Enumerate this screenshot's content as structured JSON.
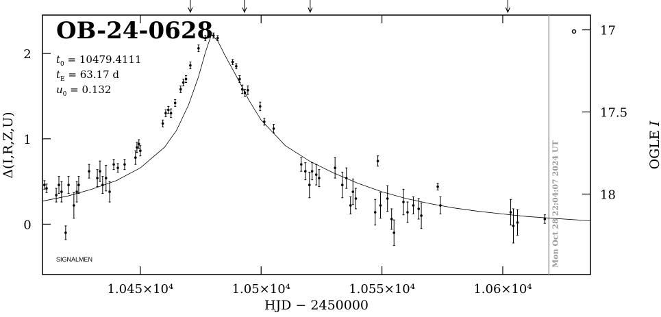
{
  "chart_data": {
    "type": "scatter",
    "title": "OB-24-0628",
    "params": [
      {
        "symbol": "t",
        "sub": "0",
        "text": " = 10479.4111"
      },
      {
        "symbol": "t",
        "sub": "E",
        "text": " = 63.17 d"
      },
      {
        "symbol": "u",
        "sub": "0",
        "text": " = 0.132"
      }
    ],
    "footnote": "SIGNALMEN",
    "xlabel": "HJD − 2450000",
    "ylabel": "Δ(I,R,Z,U)",
    "y2label": [
      "OGLE",
      "I"
    ],
    "timestamp": "Mon Oct 28 22:04:07 2024 UT",
    "timestamp_x": 10619.1,
    "arrows_x": [
      10470.7,
      10493.1,
      10520.3,
      10602.1
    ],
    "xlim": [
      10409.5,
      10636.3
    ],
    "xticks": [
      {
        "value": 10450,
        "label": "1.045×10⁴"
      },
      {
        "value": 10500,
        "label": "1.05×10⁴"
      },
      {
        "value": 10550,
        "label": "1.055×10⁴"
      },
      {
        "value": 10600,
        "label": "1.06×10⁴"
      }
    ],
    "ylim": [
      -0.59,
      2.45
    ],
    "yticks": [
      0,
      1,
      2
    ],
    "y2lim": [
      18.49,
      16.91
    ],
    "y2ticks": [
      17,
      17.5,
      18
    ],
    "color": "#000000",
    "points": {
      "x": [
        10410.3,
        10411.2,
        10415.2,
        10416.3,
        10417.4,
        10419.1,
        10420.3,
        10422.5,
        10423.7,
        10424.5,
        10428.8,
        10432.2,
        10433.3,
        10434.4,
        10435.8,
        10437.3,
        10439.0,
        10440.7,
        10443.5,
        10448.0,
        10448.6,
        10449.4,
        10450.0,
        10459.3,
        10460.5,
        10461.6,
        10462.7,
        10464.4,
        10466.7,
        10467.8,
        10468.9,
        10470.7,
        10474.1,
        10476.9,
        10478.6,
        10480.3,
        10482.0,
        10488.2,
        10489.7,
        10491.1,
        10492.2,
        10493.3,
        10494.5,
        10499.6,
        10501.3,
        10505.2,
        10516.6,
        10518.3,
        10520.0,
        10521.1,
        10522.8,
        10524.0,
        10530.6,
        10533.6,
        10535.3,
        10537.0,
        10538.0,
        10539.2,
        10547.2,
        10548.3,
        10549.4,
        10552.3,
        10554.0,
        10555.0,
        10558.9,
        10560.6,
        10563.0,
        10565.2,
        10566.3,
        10573.1,
        10574.2,
        10603.3,
        10604.4,
        10606.1,
        10617.4
      ],
      "values": [
        0.46,
        0.42,
        0.34,
        0.46,
        0.38,
        -0.1,
        0.46,
        0.22,
        0.38,
        0.46,
        0.62,
        0.54,
        0.62,
        0.46,
        0.54,
        0.38,
        0.7,
        0.66,
        0.7,
        0.78,
        0.9,
        0.94,
        0.86,
        1.18,
        1.3,
        1.34,
        1.3,
        1.42,
        1.58,
        1.66,
        1.7,
        1.86,
        2.06,
        2.18,
        2.22,
        2.21,
        2.18,
        1.9,
        1.85,
        1.7,
        1.58,
        1.54,
        1.57,
        1.38,
        1.2,
        1.12,
        0.7,
        0.62,
        0.46,
        0.62,
        0.58,
        0.54,
        0.66,
        0.46,
        0.54,
        0.22,
        0.38,
        0.3,
        0.14,
        0.74,
        0.22,
        0.3,
        0.06,
        -0.1,
        0.26,
        0.14,
        0.22,
        0.18,
        0.1,
        0.44,
        0.22,
        0.14,
        -0.02,
        0.02,
        0.06
      ],
      "errors": [
        0.05,
        0.05,
        0.08,
        0.1,
        0.12,
        0.08,
        0.1,
        0.15,
        0.12,
        0.1,
        0.08,
        0.1,
        0.12,
        0.1,
        0.15,
        0.12,
        0.06,
        0.05,
        0.06,
        0.08,
        0.06,
        0.05,
        0.06,
        0.04,
        0.04,
        0.04,
        0.05,
        0.04,
        0.04,
        0.04,
        0.04,
        0.04,
        0.04,
        0.03,
        0.03,
        0.03,
        0.03,
        0.03,
        0.03,
        0.04,
        0.05,
        0.04,
        0.05,
        0.05,
        0.04,
        0.05,
        0.08,
        0.1,
        0.15,
        0.1,
        0.12,
        0.1,
        0.12,
        0.15,
        0.12,
        0.1,
        0.15,
        0.12,
        0.15,
        0.06,
        0.15,
        0.15,
        0.12,
        0.15,
        0.15,
        0.12,
        0.1,
        0.12,
        0.15,
        0.04,
        0.1,
        0.15,
        0.2,
        0.15,
        0.05
      ]
    },
    "model": {
      "x": [
        10409.5,
        10420,
        10430,
        10440,
        10450,
        10460,
        10465,
        10470,
        10474,
        10477,
        10479.4,
        10482,
        10485,
        10490,
        10495,
        10500,
        10510,
        10520,
        10530,
        10540,
        10550,
        10560,
        10570,
        10580,
        10590,
        10600,
        10610,
        10620,
        10636.3
      ],
      "values": [
        0.27,
        0.33,
        0.41,
        0.51,
        0.66,
        0.9,
        1.1,
        1.4,
        1.72,
        2.02,
        2.22,
        2.15,
        1.98,
        1.72,
        1.45,
        1.22,
        0.92,
        0.74,
        0.6,
        0.48,
        0.38,
        0.3,
        0.24,
        0.19,
        0.15,
        0.12,
        0.09,
        0.07,
        0.04
      ]
    }
  }
}
